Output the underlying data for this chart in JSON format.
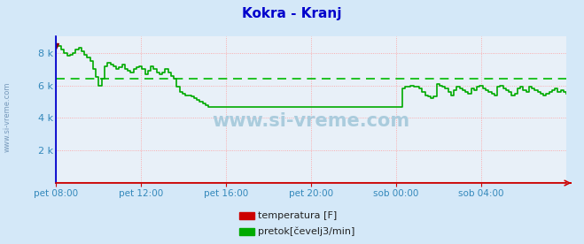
{
  "title": "Kokra - Kranj",
  "title_color": "#0000cc",
  "bg_color": "#d4e8f8",
  "plot_bg_color": "#e8f0f8",
  "grid_color_pink": "#ff9999",
  "avg_line_color": "#00bb00",
  "avg_line_value": 6400,
  "ylim": [
    0,
    9000
  ],
  "ytick_vals": [
    0,
    2000,
    4000,
    6000,
    8000
  ],
  "ytick_labels": [
    "",
    "2 k",
    "4 k",
    "6 k",
    "8 k"
  ],
  "xtick_labels": [
    "pet 08:00",
    "pet 12:00",
    "pet 16:00",
    "pet 20:00",
    "sob 00:00",
    "sob 04:00"
  ],
  "tick_color": "#3388bb",
  "watermark": "www.si-vreme.com",
  "watermark_color": "#aaccdd",
  "sidewatermark": "www.si-vreme.com",
  "sidewatermark_color": "#7799bb",
  "legend_items": [
    {
      "label": "temperatura [F]",
      "color": "#cc0000"
    },
    {
      "label": "pretok[čevelj3/min]",
      "color": "#00aa00"
    }
  ],
  "flow_color": "#00aa00",
  "temp_color": "#cc0000",
  "flow_data": [
    8400,
    8400,
    8200,
    8000,
    7800,
    7900,
    8000,
    8200,
    8300,
    8100,
    7900,
    7700,
    7500,
    7000,
    6500,
    6000,
    6400,
    7200,
    7400,
    7300,
    7200,
    7000,
    7100,
    7300,
    7000,
    6900,
    6800,
    7000,
    7100,
    7200,
    7000,
    6700,
    6900,
    7200,
    7000,
    6800,
    6700,
    6800,
    7000,
    6800,
    6600,
    6400,
    5900,
    5600,
    5500,
    5400,
    5400,
    5300,
    5200,
    5100,
    5000,
    4900,
    4800,
    4700,
    4700,
    4700,
    4700,
    4700,
    4700,
    4700,
    4700,
    4700,
    4700,
    4700,
    4700,
    4700,
    4700,
    4700,
    4700,
    4700,
    4700,
    4700,
    4700,
    4700,
    4700,
    4700,
    4700,
    4700,
    4700,
    4700,
    4700,
    4700,
    4700,
    4700,
    4700,
    4700,
    4700,
    4700,
    4700,
    4700,
    4700,
    4700,
    4700,
    4700,
    4700,
    4700,
    4700,
    4700,
    4700,
    4700,
    4700,
    4700,
    4700,
    4700,
    4700,
    4700,
    4700,
    4700,
    4700,
    4700,
    4700,
    4700,
    4700,
    4700,
    4700,
    4700,
    4700,
    4700,
    4700,
    4700,
    5800,
    5900,
    5900,
    6000,
    5900,
    5900,
    5800,
    5600,
    5400,
    5300,
    5200,
    5300,
    6100,
    6000,
    5900,
    5800,
    5600,
    5400,
    5700,
    5900,
    5800,
    5700,
    5600,
    5500,
    5800,
    5700,
    5900,
    6000,
    5800,
    5700,
    5600,
    5500,
    5400,
    5900,
    6000,
    5800,
    5700,
    5600,
    5400,
    5500,
    5800,
    5900,
    5700,
    5600,
    5900,
    5800,
    5700,
    5600,
    5500,
    5400,
    5500,
    5600,
    5700,
    5800,
    5600,
    5700,
    5600,
    5500
  ]
}
